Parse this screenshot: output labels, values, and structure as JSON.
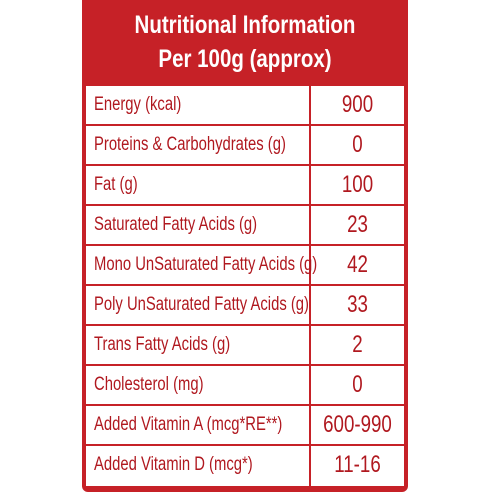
{
  "header": {
    "title": "Nutritional Information",
    "subtitle": "Per 100g (approx)"
  },
  "colors": {
    "brand_red": "#c62127",
    "text_red": "#b0181f",
    "header_text": "#ffffff"
  },
  "rows": [
    {
      "label": "Energy (kcal)",
      "value": "900"
    },
    {
      "label": "Proteins & Carbohydrates (g)",
      "value": "0"
    },
    {
      "label": "Fat (g)",
      "value": "100"
    },
    {
      "label": "Saturated Fatty Acids (g)",
      "value": "23"
    },
    {
      "label": "Mono UnSaturated Fatty Acids (g)",
      "value": "42"
    },
    {
      "label": "Poly UnSaturated Fatty Acids (g)",
      "value": "33"
    },
    {
      "label": "Trans Fatty Acids (g)",
      "value": "2"
    },
    {
      "label": "Cholesterol (mg)",
      "value": "0"
    },
    {
      "label": "Added Vitamin A   (mcg*RE**)",
      "value": "600-990"
    },
    {
      "label": "Added Vitamin D   (mcg*)",
      "value": "11-16"
    }
  ]
}
